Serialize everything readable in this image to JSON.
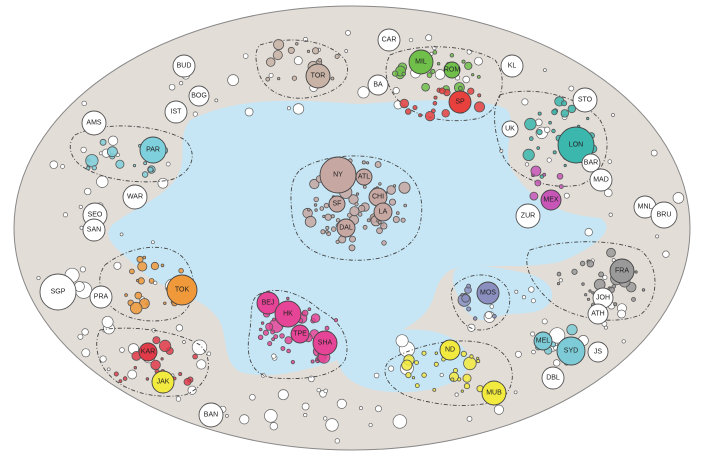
{
  "diagram": {
    "colors": {
      "outer": "#e3ddd7",
      "lake": "#c6e6f5",
      "us": "#c6a7a2",
      "east_asia": "#e64496",
      "uk": "#3bb7ad",
      "japan": "#f0993a",
      "india": "#f2ea3e",
      "europe": "#9a9a9a",
      "russia": "#8a8fbf",
      "australia": "#7dcbd6",
      "italy": "#6fbf4a",
      "latin": "#e8403d",
      "mexico": "#c856b8",
      "canada": "#c8b3a6",
      "france_blue": "#7ed0dc",
      "sea": "#e13b4a"
    },
    "colored_labels": [
      {
        "text": "NY",
        "group": "us"
      },
      {
        "text": "ATL",
        "group": "us"
      },
      {
        "text": "CHI",
        "group": "us"
      },
      {
        "text": "SF",
        "group": "us"
      },
      {
        "text": "LA",
        "group": "us"
      },
      {
        "text": "DAL",
        "group": "us"
      },
      {
        "text": "TOR",
        "group": "canada"
      },
      {
        "text": "MIL",
        "group": "italy"
      },
      {
        "text": "ROM",
        "group": "italy"
      },
      {
        "text": "SP",
        "group": "latin"
      },
      {
        "text": "LON",
        "group": "uk"
      },
      {
        "text": "MEX",
        "group": "mexico"
      },
      {
        "text": "PAR",
        "group": "france_blue"
      },
      {
        "text": "TOK",
        "group": "japan"
      },
      {
        "text": "BEJ",
        "group": "east_asia"
      },
      {
        "text": "HK",
        "group": "east_asia"
      },
      {
        "text": "TPE",
        "group": "east_asia"
      },
      {
        "text": "SHA",
        "group": "east_asia"
      },
      {
        "text": "KAR",
        "group": "sea"
      },
      {
        "text": "JAK",
        "group": "india"
      },
      {
        "text": "ND",
        "group": "india"
      },
      {
        "text": "MUB",
        "group": "india"
      },
      {
        "text": "MOS",
        "group": "russia"
      },
      {
        "text": "FRA",
        "group": "europe"
      },
      {
        "text": "SYD",
        "group": "australia"
      },
      {
        "text": "MEL",
        "group": "australia"
      }
    ],
    "white_labels": [
      "CAR",
      "BUD",
      "BOG",
      "BA",
      "KL",
      "IST",
      "AMS",
      "STO",
      "UK",
      "BAR",
      "MAD",
      "MNL",
      "BRU",
      "ZUR",
      "WAR",
      "SEO",
      "SAN",
      "SGP",
      "PRA",
      "JOH",
      "ATH",
      "JS",
      "DBL",
      "BAN"
    ]
  }
}
